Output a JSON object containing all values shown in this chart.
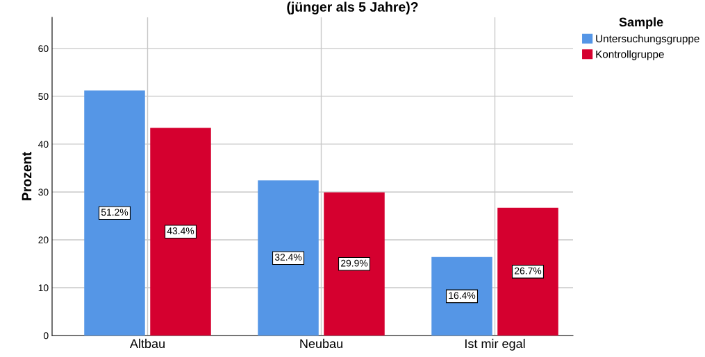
{
  "chart_data": {
    "type": "bar",
    "title": "(jünger als 5 Jahre)?",
    "ylabel": "Prozent",
    "legend_title": "Sample",
    "categories": [
      "Altbau",
      "Neubau",
      "Ist mir egal"
    ],
    "series": [
      {
        "name": "Untersuchungsgruppe",
        "color": "#5596e6",
        "values": [
          51.2,
          32.4,
          16.4
        ],
        "value_labels": [
          "51.2%",
          "32.4%",
          "16.4%"
        ]
      },
      {
        "name": "Kontrollgruppe",
        "color": "#d5002f",
        "values": [
          43.4,
          29.9,
          26.7
        ],
        "value_labels": [
          "43.4%",
          "29.9%",
          "26.7%"
        ]
      }
    ],
    "ylim": [
      0,
      66.5
    ],
    "yticks": [
      0,
      10,
      20,
      30,
      40,
      50,
      60
    ],
    "grid": true,
    "legend": "top right"
  }
}
